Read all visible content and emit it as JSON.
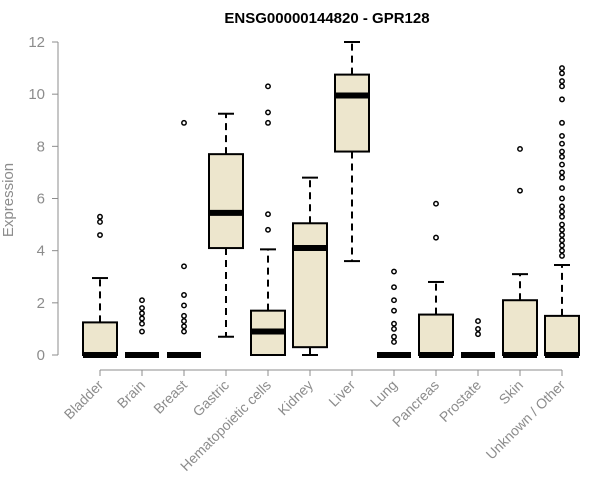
{
  "chart_data": {
    "type": "boxplot",
    "title": "ENSG00000144820 - GPR128",
    "xlabel": "",
    "ylabel": "Expression",
    "ylim": [
      0,
      12
    ],
    "yticks": [
      0,
      2,
      4,
      6,
      8,
      10,
      12
    ],
    "box_fill": "#ede6cd",
    "categories": [
      "Bladder",
      "Brain",
      "Breast",
      "Gastric",
      "Hematopoietic cells",
      "Kidney",
      "Liver",
      "Lung",
      "Pancreas",
      "Prostate",
      "Skin",
      "Unknown / Other"
    ],
    "boxes": [
      {
        "q1": 0,
        "median": 0,
        "q3": 1.25,
        "whisker_low": 0,
        "whisker_high": 2.95,
        "outliers": [
          4.6,
          5.1,
          5.3
        ]
      },
      {
        "q1": 0,
        "median": 0,
        "q3": 0,
        "whisker_low": 0,
        "whisker_high": 0,
        "outliers": [
          0.9,
          1.2,
          1.4,
          1.6,
          1.8,
          2.1
        ]
      },
      {
        "q1": 0,
        "median": 0,
        "q3": 0,
        "whisker_low": 0,
        "whisker_high": 0,
        "outliers": [
          0.9,
          1.1,
          1.3,
          1.5,
          1.9,
          2.3,
          3.4,
          8.9
        ]
      },
      {
        "q1": 4.1,
        "median": 5.45,
        "q3": 7.7,
        "whisker_low": 0.7,
        "whisker_high": 9.25,
        "outliers": []
      },
      {
        "q1": 0,
        "median": 0.9,
        "q3": 1.7,
        "whisker_low": 0,
        "whisker_high": 4.05,
        "outliers": [
          4.8,
          5.4,
          8.9,
          9.3,
          10.3
        ]
      },
      {
        "q1": 0.3,
        "median": 4.1,
        "q3": 5.05,
        "whisker_low": 0,
        "whisker_high": 6.8,
        "outliers": []
      },
      {
        "q1": 7.8,
        "median": 9.95,
        "q3": 10.75,
        "whisker_low": 3.6,
        "whisker_high": 12.0,
        "outliers": []
      },
      {
        "q1": 0,
        "median": 0,
        "q3": 0,
        "whisker_low": 0,
        "whisker_high": 0,
        "outliers": [
          0.5,
          0.7,
          1.0,
          1.2,
          1.7,
          2.1,
          2.6,
          3.2
        ]
      },
      {
        "q1": 0,
        "median": 0,
        "q3": 1.55,
        "whisker_low": 0,
        "whisker_high": 2.8,
        "outliers": [
          4.5,
          5.8
        ]
      },
      {
        "q1": 0,
        "median": 0,
        "q3": 0,
        "whisker_low": 0,
        "whisker_high": 0,
        "outliers": [
          0.8,
          1.0,
          1.3
        ]
      },
      {
        "q1": 0,
        "median": 0,
        "q3": 2.1,
        "whisker_low": 0,
        "whisker_high": 3.1,
        "outliers": [
          6.3,
          7.9
        ]
      },
      {
        "q1": 0,
        "median": 0,
        "q3": 1.5,
        "whisker_low": 0,
        "whisker_high": 3.45,
        "outliers": [
          3.8,
          4.0,
          4.2,
          4.4,
          4.6,
          4.8,
          5.0,
          5.3,
          5.5,
          5.7,
          6.0,
          6.4,
          6.8,
          7.0,
          7.3,
          7.6,
          7.8,
          8.1,
          8.4,
          8.9,
          9.8,
          10.3,
          10.5,
          10.8,
          11.0
        ]
      }
    ]
  }
}
